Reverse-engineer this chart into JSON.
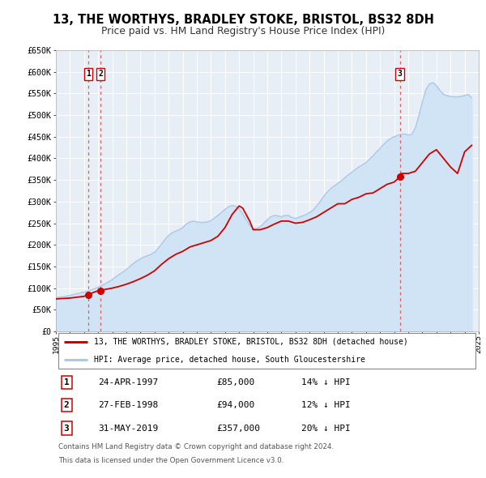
{
  "title": "13, THE WORTHYS, BRADLEY STOKE, BRISTOL, BS32 8DH",
  "subtitle": "Price paid vs. HM Land Registry's House Price Index (HPI)",
  "title_fontsize": 10.5,
  "subtitle_fontsize": 9,
  "hpi_label": "HPI: Average price, detached house, South Gloucestershire",
  "price_label": "13, THE WORTHYS, BRADLEY STOKE, BRISTOL, BS32 8DH (detached house)",
  "hpi_color": "#aac8e8",
  "hpi_fill_color": "#d0e4f5",
  "price_color": "#cc0000",
  "vline_color": "#e08080",
  "ylim": [
    0,
    650000
  ],
  "yticks": [
    0,
    50000,
    100000,
    150000,
    200000,
    250000,
    300000,
    350000,
    400000,
    450000,
    500000,
    550000,
    600000,
    650000
  ],
  "ytick_labels": [
    "£0",
    "£50K",
    "£100K",
    "£150K",
    "£200K",
    "£250K",
    "£300K",
    "£350K",
    "£400K",
    "£450K",
    "£500K",
    "£550K",
    "£600K",
    "£650K"
  ],
  "sales": [
    {
      "num": 1,
      "date": "24-APR-1997",
      "price": 85000,
      "pct": "14%",
      "year": 1997.3
    },
    {
      "num": 2,
      "date": "27-FEB-1998",
      "price": 94000,
      "pct": "12%",
      "year": 1998.16
    },
    {
      "num": 3,
      "date": "31-MAY-2019",
      "price": 357000,
      "pct": "20%",
      "year": 2019.41
    }
  ],
  "footnote1": "Contains HM Land Registry data © Crown copyright and database right 2024.",
  "footnote2": "This data is licensed under the Open Government Licence v3.0.",
  "hpi_x": [
    1995.0,
    1995.25,
    1995.5,
    1995.75,
    1996.0,
    1996.25,
    1996.5,
    1996.75,
    1997.0,
    1997.25,
    1997.5,
    1997.75,
    1998.0,
    1998.25,
    1998.5,
    1998.75,
    1999.0,
    1999.25,
    1999.5,
    1999.75,
    2000.0,
    2000.25,
    2000.5,
    2000.75,
    2001.0,
    2001.25,
    2001.5,
    2001.75,
    2002.0,
    2002.25,
    2002.5,
    2002.75,
    2003.0,
    2003.25,
    2003.5,
    2003.75,
    2004.0,
    2004.25,
    2004.5,
    2004.75,
    2005.0,
    2005.25,
    2005.5,
    2005.75,
    2006.0,
    2006.25,
    2006.5,
    2006.75,
    2007.0,
    2007.25,
    2007.5,
    2007.75,
    2008.0,
    2008.25,
    2008.5,
    2008.75,
    2009.0,
    2009.25,
    2009.5,
    2009.75,
    2010.0,
    2010.25,
    2010.5,
    2010.75,
    2011.0,
    2011.25,
    2011.5,
    2011.75,
    2012.0,
    2012.25,
    2012.5,
    2012.75,
    2013.0,
    2013.25,
    2013.5,
    2013.75,
    2014.0,
    2014.25,
    2014.5,
    2014.75,
    2015.0,
    2015.25,
    2015.5,
    2015.75,
    2016.0,
    2016.25,
    2016.5,
    2016.75,
    2017.0,
    2017.25,
    2017.5,
    2017.75,
    2018.0,
    2018.25,
    2018.5,
    2018.75,
    2019.0,
    2019.25,
    2019.5,
    2019.75,
    2020.0,
    2020.25,
    2020.5,
    2020.75,
    2021.0,
    2021.25,
    2021.5,
    2021.75,
    2022.0,
    2022.25,
    2022.5,
    2022.75,
    2023.0,
    2023.25,
    2023.5,
    2023.75,
    2024.0,
    2024.25,
    2024.5
  ],
  "hpi_y": [
    78000,
    79000,
    80000,
    81500,
    83000,
    85000,
    87000,
    89000,
    91000,
    93000,
    96000,
    99000,
    102000,
    106000,
    110000,
    115000,
    120000,
    126000,
    132000,
    137000,
    143000,
    150000,
    157000,
    163000,
    168000,
    172000,
    175000,
    178000,
    183000,
    192000,
    202000,
    213000,
    222000,
    228000,
    232000,
    235000,
    240000,
    248000,
    253000,
    255000,
    253000,
    252000,
    252000,
    253000,
    256000,
    262000,
    268000,
    275000,
    282000,
    288000,
    291000,
    289000,
    284000,
    272000,
    258000,
    245000,
    237000,
    238000,
    242000,
    250000,
    258000,
    265000,
    268000,
    267000,
    265000,
    268000,
    268000,
    263000,
    261000,
    264000,
    267000,
    270000,
    275000,
    280000,
    290000,
    300000,
    312000,
    322000,
    330000,
    336000,
    342000,
    348000,
    355000,
    362000,
    368000,
    374000,
    380000,
    385000,
    390000,
    398000,
    406000,
    415000,
    423000,
    432000,
    440000,
    446000,
    450000,
    453000,
    456000,
    456000,
    454000,
    455000,
    470000,
    498000,
    530000,
    558000,
    572000,
    575000,
    568000,
    557000,
    548000,
    545000,
    543000,
    542000,
    542000,
    543000,
    545000,
    548000,
    540000
  ],
  "price_x": [
    1995.0,
    1995.5,
    1996.0,
    1996.5,
    1997.0,
    1997.3,
    1997.5,
    1997.75,
    1998.0,
    1998.16,
    1998.5,
    1999.0,
    1999.5,
    2000.0,
    2000.5,
    2001.0,
    2001.5,
    2002.0,
    2002.5,
    2003.0,
    2003.5,
    2004.0,
    2004.5,
    2005.0,
    2005.5,
    2006.0,
    2006.5,
    2007.0,
    2007.5,
    2008.0,
    2008.25,
    2008.5,
    2008.75,
    2009.0,
    2009.5,
    2010.0,
    2010.5,
    2011.0,
    2011.5,
    2012.0,
    2012.5,
    2013.0,
    2013.5,
    2014.0,
    2014.5,
    2015.0,
    2015.5,
    2016.0,
    2016.5,
    2017.0,
    2017.5,
    2018.0,
    2018.5,
    2019.0,
    2019.41,
    2019.5,
    2019.75,
    2020.0,
    2020.5,
    2021.0,
    2021.5,
    2022.0,
    2022.5,
    2023.0,
    2023.5,
    2024.0,
    2024.5
  ],
  "price_y": [
    75000,
    76000,
    77000,
    79000,
    81000,
    85000,
    88000,
    91000,
    94000,
    94000,
    97000,
    100000,
    104000,
    109000,
    115000,
    122000,
    130000,
    140000,
    155000,
    168000,
    178000,
    185000,
    195000,
    200000,
    205000,
    210000,
    220000,
    240000,
    270000,
    290000,
    285000,
    270000,
    255000,
    235000,
    235000,
    240000,
    248000,
    255000,
    255000,
    250000,
    252000,
    258000,
    265000,
    275000,
    285000,
    295000,
    295000,
    305000,
    310000,
    318000,
    320000,
    330000,
    340000,
    345000,
    357000,
    365000,
    365000,
    365000,
    370000,
    390000,
    410000,
    420000,
    400000,
    380000,
    365000,
    415000,
    430000
  ]
}
